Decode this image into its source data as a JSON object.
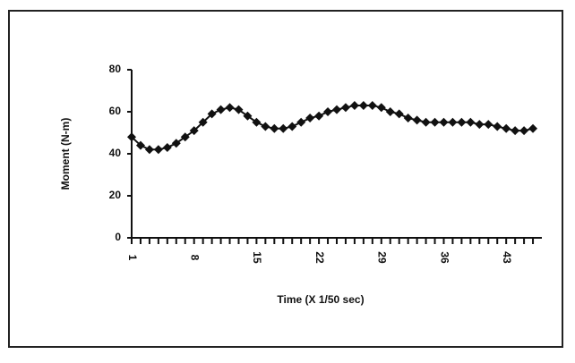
{
  "chart_data": {
    "type": "line",
    "x_label": "Time (X 1/50 sec)",
    "y_label": "Moment (N-m)",
    "x": [
      1,
      2,
      3,
      4,
      5,
      6,
      7,
      8,
      9,
      10,
      11,
      12,
      13,
      14,
      15,
      16,
      17,
      18,
      19,
      20,
      21,
      22,
      23,
      24,
      25,
      26,
      27,
      28,
      29,
      30,
      31,
      32,
      33,
      34,
      35,
      36,
      37,
      38,
      39,
      40,
      41,
      42,
      43,
      44,
      45,
      46
    ],
    "series": [
      {
        "color": "#111111",
        "values": [
          48,
          44,
          42,
          42,
          43,
          45,
          48,
          51,
          55,
          59,
          61,
          62,
          61,
          58,
          55,
          53,
          52,
          52,
          53,
          55,
          57,
          58,
          60,
          61,
          62,
          63,
          63,
          63,
          62,
          60,
          59,
          57,
          56,
          55,
          55,
          55,
          55,
          55,
          55,
          54,
          54,
          53,
          52,
          51,
          51,
          52
        ]
      }
    ],
    "xlim": [
      1,
      47
    ],
    "xticks": [
      1,
      8,
      15,
      22,
      29,
      36,
      43
    ],
    "ylim": [
      0,
      80
    ],
    "yticks": [
      0,
      20,
      40,
      60,
      80
    ]
  }
}
